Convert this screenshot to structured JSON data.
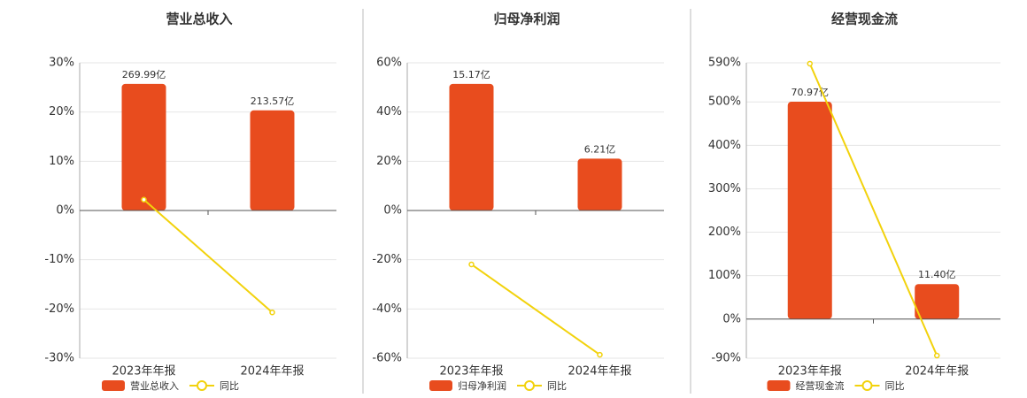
{
  "chart_data": [
    {
      "type": "bar-line",
      "title": "营业总收入",
      "categories": [
        "2023年年报",
        "2024年年报"
      ],
      "series": [
        {
          "name": "营业总收入",
          "type": "bar",
          "axis": "y2",
          "color": "#e84c1e",
          "values": [
            269.99,
            213.57
          ],
          "value_labels": [
            "269.99亿",
            "213.57亿"
          ]
        },
        {
          "name": "同比",
          "type": "line",
          "color": "#f2d20c",
          "values": [
            2.2,
            -20.7
          ]
        }
      ],
      "ylim": [
        -30,
        30
      ],
      "yticks": [
        {
          "value": -30,
          "label": "-30%"
        },
        {
          "value": -20,
          "label": "-20%"
        },
        {
          "value": -10,
          "label": "-10%"
        },
        {
          "value": 0,
          "label": "0%"
        },
        {
          "value": 10,
          "label": "10%"
        },
        {
          "value": 20,
          "label": "20%"
        },
        {
          "value": 30,
          "label": "30%"
        }
      ],
      "y2lim": [
        -315,
        315
      ],
      "grid": true
    },
    {
      "type": "bar-line",
      "title": "归母净利润",
      "categories": [
        "2023年年报",
        "2024年年报"
      ],
      "series": [
        {
          "name": "归母净利润",
          "type": "bar",
          "axis": "y2",
          "color": "#e84c1e",
          "values": [
            15.17,
            6.21
          ],
          "value_labels": [
            "15.17亿",
            "6.21亿"
          ]
        },
        {
          "name": "同比",
          "type": "line",
          "color": "#f2d20c",
          "values": [
            -21.9,
            -58.6
          ]
        }
      ],
      "ylim": [
        -60,
        60
      ],
      "yticks": [
        {
          "value": -60,
          "label": "-60%"
        },
        {
          "value": -40,
          "label": "-40%"
        },
        {
          "value": -20,
          "label": "-20%"
        },
        {
          "value": 0,
          "label": "0%"
        },
        {
          "value": 20,
          "label": "20%"
        },
        {
          "value": 40,
          "label": "40%"
        },
        {
          "value": 60,
          "label": "60%"
        }
      ],
      "y2lim": [
        -17.7,
        17.7
      ],
      "grid": true
    },
    {
      "type": "bar-line",
      "title": "经营现金流",
      "categories": [
        "2023年年报",
        "2024年年报"
      ],
      "series": [
        {
          "name": "经营现金流",
          "type": "bar",
          "axis": "y2",
          "color": "#e84c1e",
          "values": [
            70.97,
            11.4
          ],
          "value_labels": [
            "70.97亿",
            "11.40亿"
          ]
        },
        {
          "name": "同比",
          "type": "line",
          "color": "#f2d20c",
          "values": [
            588,
            -84
          ]
        }
      ],
      "ylim": [
        -90,
        590
      ],
      "yticks": [
        {
          "value": -90,
          "label": "-90%"
        },
        {
          "value": 0,
          "label": "0%"
        },
        {
          "value": 100,
          "label": "100%"
        },
        {
          "value": 200,
          "label": "200%"
        },
        {
          "value": 300,
          "label": "300%"
        },
        {
          "value": 400,
          "label": "400%"
        },
        {
          "value": 500,
          "label": "500%"
        },
        {
          "value": 590,
          "label": "590%"
        }
      ],
      "y2lim": [
        -12.8,
        83.7
      ],
      "grid": true
    }
  ]
}
